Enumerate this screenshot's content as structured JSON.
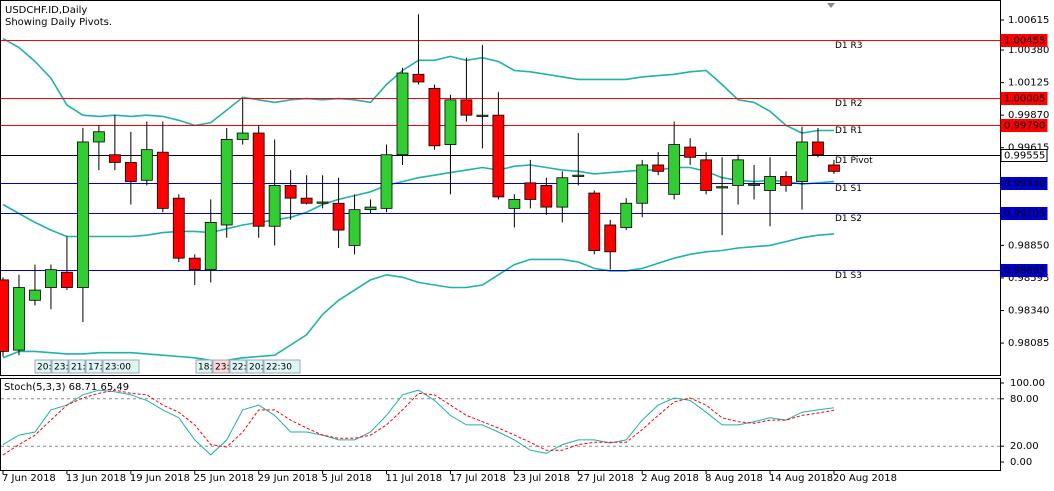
{
  "session_labels": [
    [
      "20:",
      "23:",
      "21:",
      "17:",
      "23:00"
    ],
    [
      "18:",
      "23:",
      "22:",
      "20:",
      "22:30"
    ]
  ],
  "chart_data": [
    {
      "type": "candlestick",
      "title": "USDCHF.ID,Daily",
      "subtitle": "Showing Daily Pivots.",
      "categories": [
        "7 Jun 2018",
        null,
        null,
        null,
        "13 Jun 2018",
        null,
        null,
        null,
        "19 Jun 2018",
        null,
        null,
        null,
        "25 Jun 2018",
        null,
        null,
        null,
        "29 Jun 2018",
        null,
        null,
        null,
        "5 Jul 2018",
        null,
        null,
        null,
        "11 Jul 2018",
        null,
        null,
        null,
        "17 Jul 2018",
        null,
        null,
        null,
        "23 Jul 2018",
        null,
        null,
        null,
        "27 Jul 2018",
        null,
        null,
        null,
        "2 Aug 2018",
        null,
        null,
        null,
        "8 Aug 2018",
        null,
        null,
        null,
        "14 Aug 2018",
        null,
        null,
        null,
        "20 Aug 2018"
      ],
      "open": [
        0.9858,
        0.9803,
        0.9842,
        0.9852,
        0.9864,
        0.9852,
        0.9966,
        0.9956,
        0.995,
        0.9936,
        0.9958,
        0.9922,
        0.9875,
        0.9866,
        0.9901,
        0.9968,
        0.9973,
        0.99,
        0.9932,
        0.9922,
        0.9918,
        0.9918,
        0.9885,
        0.9913,
        0.9914,
        0.9956,
        1.0019,
        1.0008,
        0.9964,
        0.9999,
        0.9986,
        0.9987,
        0.9914,
        0.9934,
        0.9932,
        0.9915,
        0.9939,
        0.9926,
        0.9901,
        0.9899,
        0.9918,
        0.9948,
        0.9925,
        0.9962,
        0.9952,
        0.993,
        0.9932,
        0.9932,
        0.9928,
        0.9939,
        0.9935,
        0.9966,
        0.9948
      ],
      "high": [
        0.986,
        0.9862,
        0.987,
        0.987,
        0.9892,
        0.9977,
        0.9979,
        0.9987,
        0.9974,
        0.9982,
        0.9982,
        0.9925,
        0.9878,
        0.9921,
        0.9977,
        1.0,
        0.9979,
        0.9968,
        0.9944,
        0.994,
        0.994,
        0.9938,
        0.9925,
        0.9921,
        0.9964,
        1.0024,
        1.0066,
        1.0011,
        1.0003,
        1.0032,
        1.0042,
        1.0005,
        0.9925,
        0.9952,
        0.9938,
        0.9943,
        0.9973,
        0.9928,
        0.9905,
        0.9922,
        0.9952,
        0.9958,
        0.9982,
        0.9969,
        0.9958,
        0.9954,
        0.9956,
        0.9948,
        0.9954,
        0.9943,
        0.9978,
        0.9977,
        0.9952
      ],
      "low": [
        0.9798,
        0.9799,
        0.9838,
        0.9835,
        0.985,
        0.9825,
        0.9944,
        0.9944,
        0.9917,
        0.9932,
        0.9911,
        0.9872,
        0.9854,
        0.9856,
        0.9891,
        0.9964,
        0.9891,
        0.9885,
        0.9905,
        0.9917,
        0.9914,
        0.9883,
        0.9878,
        0.991,
        0.9911,
        0.9948,
        1.0011,
        0.996,
        0.9925,
        0.9982,
        0.9961,
        0.9921,
        0.9899,
        0.9914,
        0.9909,
        0.9903,
        0.9932,
        0.9878,
        0.9866,
        0.9897,
        0.9907,
        0.994,
        0.9921,
        0.9948,
        0.9925,
        0.9893,
        0.9917,
        0.9921,
        0.99,
        0.9927,
        0.9913,
        0.9954,
        0.9941
      ],
      "close": [
        0.9802,
        0.9852,
        0.985,
        0.9866,
        0.9852,
        0.9966,
        0.9974,
        0.995,
        0.9935,
        0.996,
        0.9914,
        0.9875,
        0.9866,
        0.9903,
        0.9968,
        0.9973,
        0.99,
        0.9932,
        0.9922,
        0.9918,
        0.9919,
        0.9897,
        0.9913,
        0.9915,
        0.9956,
        1.002,
        1.0013,
        0.9963,
        0.9999,
        0.9987,
        0.9987,
        0.9923,
        0.9921,
        0.9921,
        0.9915,
        0.9938,
        0.994,
        0.9881,
        0.988,
        0.9918,
        0.9948,
        0.9943,
        0.9964,
        0.9954,
        0.9928,
        0.9931,
        0.9952,
        0.9933,
        0.9939,
        0.9932,
        0.9966,
        0.9956,
        0.9943
      ],
      "up_color": "#32cd32",
      "down_color": "#ff0000",
      "series": [
        {
          "color": "#20b2aa",
          "values": [
            1.0047,
            1.004,
            1.0029,
            1.0016,
            0.9995,
            0.9987,
            0.9986,
            0.9987,
            0.9986,
            0.9987,
            0.9986,
            0.9983,
            0.9979,
            0.9981,
            0.9991,
            1.0001,
            0.9999,
            0.9997,
            0.9999,
            1.0,
            0.9999,
            1.0,
            0.9999,
            0.9997,
            1.0011,
            1.0022,
            1.003,
            1.003,
            1.0033,
            1.003,
            1.0032,
            1.0029,
            1.0022,
            1.0021,
            1.0019,
            1.0017,
            1.0015,
            1.0015,
            1.0015,
            1.0015,
            1.0017,
            1.0018,
            1.0019,
            1.0021,
            1.0022,
            1.0011,
            0.9999,
            0.9997,
            0.999,
            0.9979,
            0.9973,
            0.9975,
            0.9975
          ]
        },
        {
          "color": "#20b2aa",
          "values": [
            0.9917,
            0.991,
            0.9903,
            0.9897,
            0.9892,
            0.9892,
            0.9892,
            0.9892,
            0.9892,
            0.9893,
            0.9895,
            0.9896,
            0.9896,
            0.9895,
            0.9898,
            0.9901,
            0.9903,
            0.9905,
            0.9907,
            0.9911,
            0.9917,
            0.9921,
            0.9924,
            0.9927,
            0.9932,
            0.9935,
            0.9938,
            0.994,
            0.9942,
            0.9944,
            0.9946,
            0.9944,
            0.9947,
            0.9948,
            0.9946,
            0.9944,
            0.9943,
            0.9941,
            0.9942,
            0.9943,
            0.9944,
            0.9944,
            0.9946,
            0.9946,
            0.9943,
            0.9938,
            0.9936,
            0.9935,
            0.9936,
            0.9935,
            0.9933,
            0.9934,
            0.9935
          ]
        },
        {
          "color": "#20b2aa",
          "values": [
            0.9797,
            0.9802,
            0.9802,
            0.9801,
            0.98,
            0.98,
            0.9801,
            0.9801,
            0.9801,
            0.98,
            0.9799,
            0.9798,
            0.9797,
            0.9795,
            0.9795,
            0.9797,
            0.9798,
            0.9799,
            0.9807,
            0.9815,
            0.9831,
            0.9842,
            0.985,
            0.9858,
            0.9862,
            0.986,
            0.9856,
            0.9854,
            0.9852,
            0.9852,
            0.9854,
            0.9862,
            0.987,
            0.9874,
            0.9874,
            0.9874,
            0.9872,
            0.9867,
            0.9865,
            0.9865,
            0.9867,
            0.9871,
            0.9875,
            0.9878,
            0.988,
            0.9881,
            0.9883,
            0.9884,
            0.9885,
            0.9888,
            0.9891,
            0.9893,
            0.9894
          ]
        }
      ],
      "pivots": [
        {
          "name": "D1 R3",
          "value": 1.00455,
          "value_label": "1.00455",
          "color": "#ff0000"
        },
        {
          "name": "D1 R2",
          "value": 1.00005,
          "value_label": "1.00005",
          "color": "#ff0000"
        },
        {
          "name": "D1 R1",
          "value": 0.9979,
          "value_label": "0.99790",
          "color": "#ff0000"
        },
        {
          "name": "D1 Pivot",
          "value": 0.99555,
          "value_label": "0.99555",
          "color": "#000000"
        },
        {
          "name": "D1 S1",
          "value": 0.9934,
          "value_label": "0.99340",
          "color": "#0000cd"
        },
        {
          "name": "D1 S2",
          "value": 0.99105,
          "value_label": "0.99105",
          "color": "#0000cd"
        },
        {
          "name": "D1 S3",
          "value": 0.98655,
          "value_label": "0.98655",
          "color": "#0000cd"
        }
      ],
      "ylim": [
        0.97835,
        1.00772
      ],
      "yticks": [
        1.00615,
        {
          "value": 1.0038,
          "label": "1.00380"
        },
        1.00125,
        {
          "value": 0.9987,
          "label": "0.99870"
        },
        0.99615,
        {
          "value": 0.9885,
          "label": "0.98850"
        },
        0.98595,
        {
          "value": 0.9834,
          "label": "0.98340"
        },
        0.98085
      ]
    },
    {
      "type": "line",
      "title": "Stoch(5,3,3) 68.71 65.49",
      "series": [
        {
          "color": "#20b2aa",
          "dashed": false,
          "values": [
            22,
            34,
            38,
            66,
            72,
            85,
            91,
            89,
            85,
            78,
            66,
            56,
            28,
            9,
            28,
            66,
            72,
            59,
            38,
            38,
            34,
            28,
            28,
            38,
            59,
            85,
            91,
            78,
            59,
            47,
            47,
            38,
            28,
            15,
            11,
            22,
            28,
            28,
            24,
            28,
            53,
            72,
            81,
            78,
            63,
            47,
            47,
            51,
            56,
            53,
            63,
            66,
            68.71
          ]
        },
        {
          "color": "#ff0000",
          "dashed": true,
          "values": [
            9,
            22,
            34,
            53,
            72,
            81,
            87,
            91,
            87,
            85,
            72,
            63,
            47,
            22,
            19,
            38,
            66,
            66,
            53,
            43,
            34,
            30,
            30,
            34,
            47,
            66,
            87,
            85,
            72,
            59,
            51,
            43,
            34,
            25,
            15,
            15,
            22,
            25,
            25,
            25,
            41,
            59,
            76,
            81,
            72,
            56,
            51,
            49,
            53,
            53,
            59,
            62,
            65.49
          ]
        }
      ],
      "levels": [
        80,
        20
      ],
      "ylim": [
        -10.1,
        106.3
      ],
      "yticks": [
        {
          "value": 100,
          "label": "100.00"
        },
        {
          "value": 80,
          "label": "80.00"
        },
        {
          "value": 20,
          "label": "20.00"
        },
        {
          "value": 0,
          "label": "0.00"
        }
      ]
    }
  ]
}
